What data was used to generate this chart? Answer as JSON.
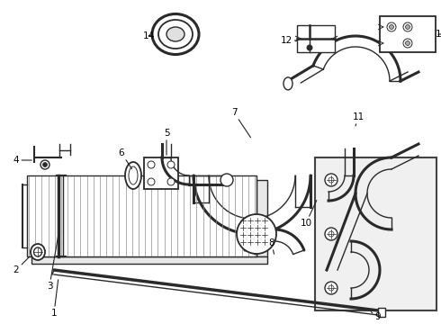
{
  "bg_color": "#ffffff",
  "line_color": "#2a2a2a",
  "label_color": "#000000",
  "figsize": [
    4.9,
    3.6
  ],
  "dpi": 100,
  "lw_main": 1.0,
  "lw_thick": 1.8,
  "lw_hose": 2.2
}
